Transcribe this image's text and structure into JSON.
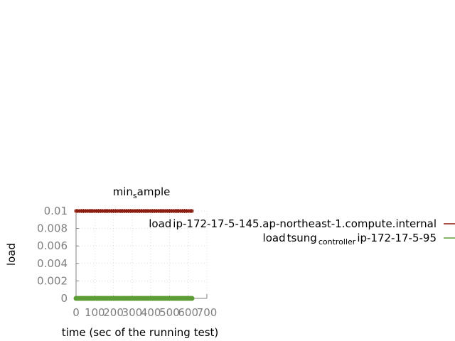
{
  "chart_data": {
    "type": "line",
    "title": "min_sample",
    "title_display": {
      "base": "min",
      "sub": "s",
      "rest": "ample"
    },
    "xlabel": "time (sec of the running test)",
    "ylabel": "load",
    "xlim": [
      0,
      700
    ],
    "ylim": [
      0,
      0.01
    ],
    "x_ticks": [
      0,
      100,
      200,
      300,
      400,
      500,
      600,
      700
    ],
    "x_tick_labels": [
      "0",
      "100",
      "200",
      "300",
      "400",
      "500",
      "600",
      "700"
    ],
    "y_ticks": [
      0,
      0.002,
      0.004,
      0.006,
      0.008,
      0.01
    ],
    "y_tick_labels": [
      "0",
      "0.002",
      "0.004",
      "0.006",
      "0.008",
      "0.01"
    ],
    "grid": true,
    "legend_position": "right",
    "series": [
      {
        "name": "load_ip-172-17-5-145.ap-northeast-1.compute.internal",
        "label_parts": [
          "load",
          "ip-172-17-5-145.ap-northeast-1.compute.internal"
        ],
        "color": "#8b1a0e",
        "marker": "star",
        "x_start": 0,
        "x_end": 620,
        "x_step": 10,
        "y": 0.01
      },
      {
        "name": "load_tsung_controller_ip-172-17-5-95",
        "label_parts": [
          "load",
          "tsung",
          "controller",
          "ip-172-17-5-95"
        ],
        "color": "#5e9c36",
        "marker": "circle",
        "x_start": 0,
        "x_end": 620,
        "x_step": 10,
        "y": 0
      }
    ]
  }
}
